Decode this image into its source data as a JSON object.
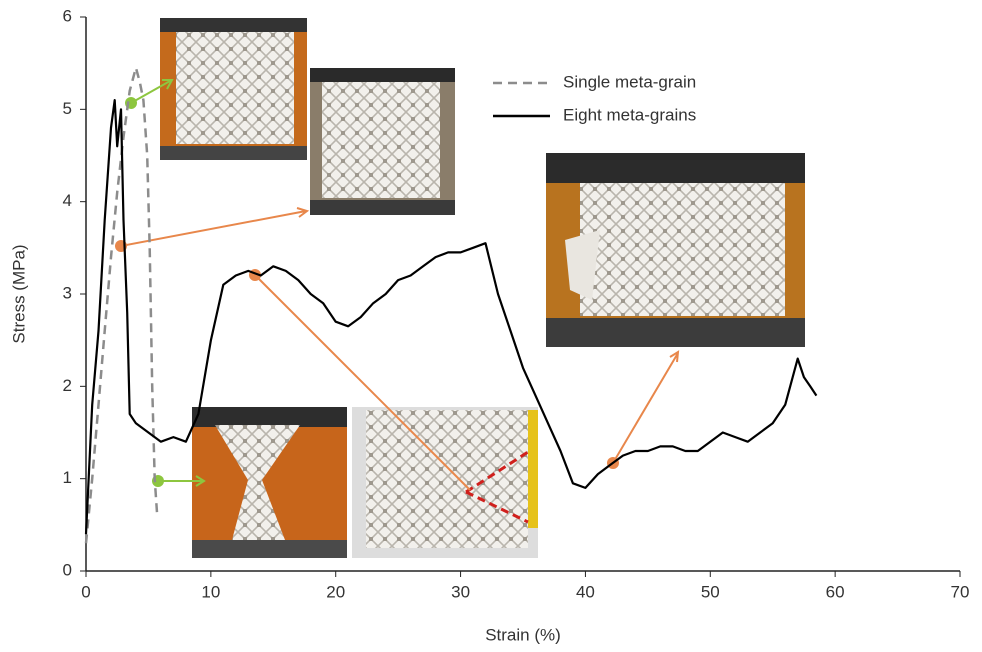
{
  "chart_data": {
    "type": "line",
    "x_label": "Strain (%)",
    "y_label": "Stress (MPa)",
    "xlim": [
      0,
      70
    ],
    "xticks": [
      0,
      10,
      20,
      30,
      40,
      50,
      60,
      70
    ],
    "ylim": [
      0,
      6
    ],
    "yticks": [
      0,
      1,
      2,
      3,
      4,
      5,
      6
    ],
    "grid": false,
    "series": [
      {
        "name": "Single meta-grain",
        "color": "#8c8c8c",
        "dashed": true,
        "x": [
          0,
          0.5,
          1,
          1.5,
          2,
          2.5,
          3,
          3.5,
          4,
          4.3,
          4.6,
          4.9,
          5.1,
          5.3,
          5.5,
          5.7
        ],
        "values": [
          0.3,
          1.0,
          1.8,
          2.6,
          3.4,
          4.1,
          4.7,
          5.2,
          5.45,
          5.3,
          5.1,
          4.5,
          3.5,
          2.0,
          1.0,
          0.6
        ]
      },
      {
        "name": "Eight meta-grains",
        "color": "#000000",
        "dashed": false,
        "x": [
          0,
          0.5,
          1,
          1.5,
          2,
          2.3,
          2.5,
          2.8,
          3,
          3.3,
          3.5,
          4,
          5,
          6,
          7,
          8,
          9,
          10,
          11,
          12,
          13,
          14,
          15,
          16,
          17,
          18,
          19,
          20,
          21,
          22,
          23,
          24,
          25,
          26,
          27,
          28,
          29,
          30,
          31,
          32,
          33,
          34,
          35,
          36,
          37,
          38,
          39,
          40,
          41,
          42,
          43,
          44,
          45,
          46,
          47,
          48,
          49,
          50,
          51,
          52,
          53,
          54,
          55,
          56,
          57,
          57.5,
          58,
          58.5
        ],
        "values": [
          0.4,
          1.8,
          2.6,
          3.8,
          4.8,
          5.1,
          4.6,
          5.0,
          3.8,
          2.8,
          1.7,
          1.6,
          1.5,
          1.4,
          1.45,
          1.4,
          1.7,
          2.5,
          3.1,
          3.2,
          3.25,
          3.2,
          3.3,
          3.25,
          3.15,
          3.0,
          2.9,
          2.7,
          2.65,
          2.75,
          2.9,
          3.0,
          3.15,
          3.2,
          3.3,
          3.4,
          3.45,
          3.45,
          3.5,
          3.55,
          3.0,
          2.6,
          2.2,
          1.9,
          1.6,
          1.3,
          0.95,
          0.9,
          1.05,
          1.15,
          1.25,
          1.3,
          1.3,
          1.35,
          1.35,
          1.3,
          1.3,
          1.4,
          1.5,
          1.45,
          1.4,
          1.5,
          1.6,
          1.8,
          2.3,
          2.1,
          2.0,
          1.9
        ]
      }
    ]
  }
}
